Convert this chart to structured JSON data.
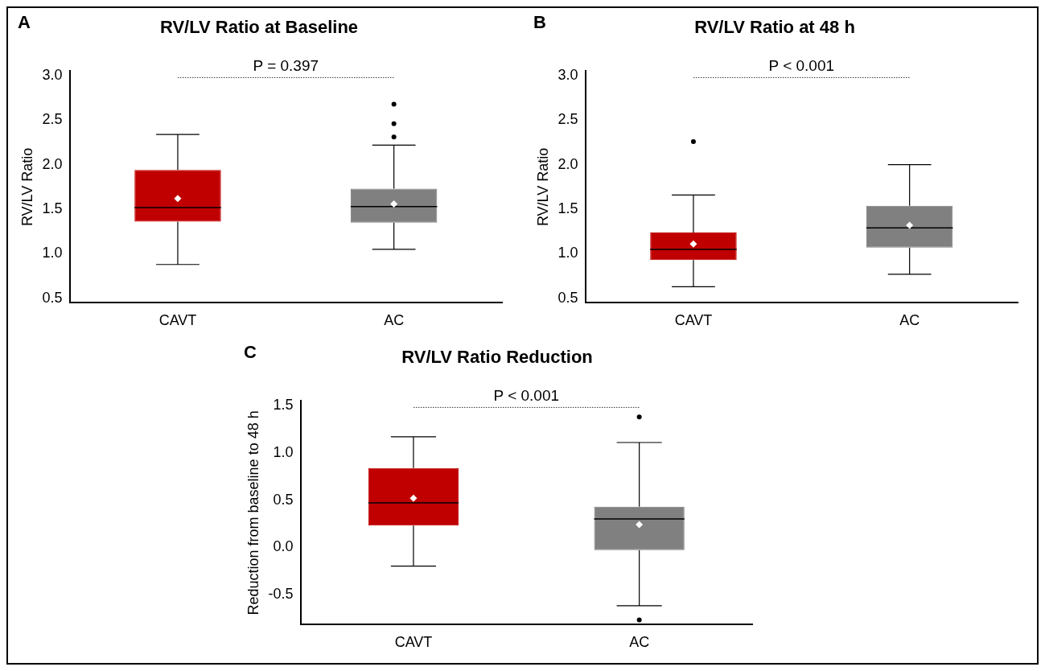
{
  "chart_data": [
    {
      "type": "box",
      "title": "RV/LV Ratio at Baseline",
      "ylabel": "RV/LV Ratio",
      "categories": [
        "CAVT",
        "AC"
      ],
      "colors": [
        "#c00000",
        "#808080"
      ],
      "boxes": [
        {
          "low": 0.88,
          "q1": 1.36,
          "median": 1.52,
          "q3": 1.94,
          "high": 2.34,
          "mean": 1.62
        },
        {
          "low": 1.05,
          "q1": 1.35,
          "median": 1.53,
          "q3": 1.73,
          "high": 2.22,
          "mean": 1.56,
          "outliers": [
            2.31,
            2.46,
            2.68
          ]
        }
      ],
      "ylim": [
        0.45,
        3.05
      ],
      "yticks": [
        {
          "value": 0.5,
          "label": "0.5"
        },
        {
          "value": 1,
          "label": "1.0"
        },
        {
          "value": 1.5,
          "label": "1.5"
        },
        {
          "value": 2,
          "label": "2.0"
        },
        {
          "value": 2.5,
          "label": "2.5"
        },
        {
          "value": 3,
          "label": "3.0"
        }
      ],
      "annotations": [
        "A",
        "P = 0.397"
      ],
      "grid": false,
      "legend": false
    },
    {
      "type": "box",
      "title": "RV/LV Ratio at 48 h",
      "ylabel": "RV/LV Ratio",
      "categories": [
        "CAVT",
        "AC"
      ],
      "colors": [
        "#c00000",
        "#808080"
      ],
      "boxes": [
        {
          "low": 0.63,
          "q1": 0.93,
          "median": 1.05,
          "q3": 1.24,
          "high": 1.66,
          "mean": 1.11,
          "outliers": [
            2.26
          ]
        },
        {
          "low": 0.77,
          "q1": 1.07,
          "median": 1.29,
          "q3": 1.54,
          "high": 2.0,
          "mean": 1.32
        }
      ],
      "ylim": [
        0.45,
        3.05
      ],
      "yticks": [
        {
          "value": 0.5,
          "label": "0.5"
        },
        {
          "value": 1,
          "label": "1.0"
        },
        {
          "value": 1.5,
          "label": "1.5"
        },
        {
          "value": 2,
          "label": "2.0"
        },
        {
          "value": 2.5,
          "label": "2.5"
        },
        {
          "value": 3,
          "label": "3.0"
        }
      ],
      "annotations": [
        "B",
        "P < 0.001"
      ],
      "grid": false,
      "legend": false
    },
    {
      "type": "box",
      "title": "RV/LV Ratio Reduction",
      "ylabel": "Reduction from baseline to 48 h",
      "categories": [
        "CAVT",
        "AC"
      ],
      "colors": [
        "#c00000",
        "#808080"
      ],
      "boxes": [
        {
          "low": -0.2,
          "q1": 0.23,
          "median": 0.47,
          "q3": 0.84,
          "high": 1.17,
          "mean": 0.52
        },
        {
          "low": -0.62,
          "q1": -0.03,
          "median": 0.3,
          "q3": 0.43,
          "high": 1.11,
          "mean": 0.24,
          "outliers": [
            1.38,
            -0.77
          ]
        }
      ],
      "ylim": [
        -0.82,
        1.55
      ],
      "yticks": [
        {
          "value": -0.5,
          "label": "-0.5"
        },
        {
          "value": 0,
          "label": "0.0"
        },
        {
          "value": 0.5,
          "label": "0.5"
        },
        {
          "value": 1,
          "label": "1.0"
        },
        {
          "value": 1.5,
          "label": "1.5"
        }
      ],
      "annotations": [
        "C",
        "P < 0.001"
      ],
      "grid": false,
      "legend": false
    }
  ]
}
